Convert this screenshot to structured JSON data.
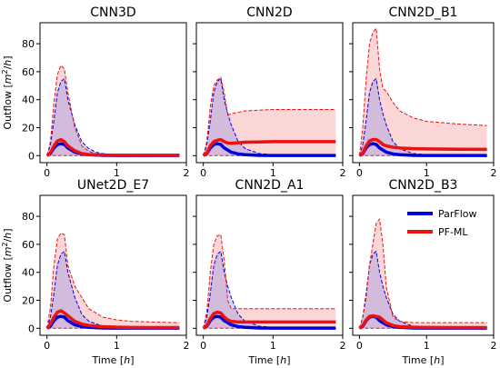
{
  "chart_data": [
    {
      "type": "line",
      "title": "CNN3D",
      "ylabel": "Outflow [m²/h]",
      "xlabel": "",
      "x": [
        0.0,
        0.05,
        0.1,
        0.15,
        0.2,
        0.25,
        0.3,
        0.4,
        0.5,
        0.6,
        0.7,
        0.8,
        1.0,
        1.5,
        1.9
      ],
      "series": [
        {
          "name": "ParFlow",
          "mean": [
            0,
            1.5,
            5.5,
            8,
            8.5,
            8,
            5.5,
            2.5,
            1.2,
            0.7,
            0.4,
            0.2,
            0.1,
            0.1,
            0.1
          ],
          "upper": [
            0,
            8,
            25,
            45,
            53,
            55,
            40,
            22,
            10,
            5,
            2.5,
            1.5,
            0.7,
            0.5,
            0.5
          ],
          "lower": [
            0,
            0,
            0,
            0,
            0,
            0,
            0,
            0,
            0,
            0,
            0,
            0,
            0,
            0,
            0
          ]
        },
        {
          "name": "PF-ML",
          "mean": [
            0,
            2,
            7,
            10.5,
            11.5,
            10,
            7,
            3.5,
            1.5,
            0.8,
            0.5,
            0.4,
            0.3,
            0.3,
            0.3
          ],
          "upper": [
            0,
            10,
            38,
            58,
            64.5,
            62,
            45,
            20,
            7,
            3,
            1.5,
            1.2,
            1,
            1,
            1
          ],
          "lower": [
            0,
            0,
            0,
            0,
            0,
            0,
            0,
            0,
            0,
            0,
            0,
            0,
            0,
            0,
            0
          ]
        }
      ]
    },
    {
      "type": "line",
      "title": "CNN2D",
      "xlabel": "",
      "ylabel": "",
      "x": [
        0.0,
        0.05,
        0.1,
        0.15,
        0.2,
        0.25,
        0.3,
        0.35,
        0.4,
        0.5,
        0.6,
        0.8,
        1.0,
        1.5,
        1.9
      ],
      "series": [
        {
          "name": "ParFlow",
          "mean": [
            0,
            1.5,
            5.5,
            8,
            8.5,
            8,
            5.5,
            4,
            2.5,
            1.2,
            0.7,
            0.2,
            0.1,
            0.1,
            0.1
          ],
          "upper": [
            0,
            8,
            25,
            45,
            53,
            55,
            40,
            30,
            22,
            10,
            5,
            1.5,
            0.7,
            0.5,
            0.5
          ],
          "lower": [
            0,
            0,
            0,
            0,
            0,
            0,
            0,
            0,
            0,
            0,
            0,
            0,
            0,
            0,
            0
          ]
        },
        {
          "name": "PF-ML",
          "mean": [
            0,
            2,
            7,
            10,
            11,
            11.5,
            10,
            9,
            8.8,
            9.2,
            9.6,
            9.8,
            10,
            10,
            10
          ],
          "upper": [
            0,
            10,
            35,
            50,
            54,
            56,
            45,
            29,
            30,
            31,
            32,
            32.5,
            33,
            33,
            33
          ],
          "lower": [
            0,
            0,
            0,
            0,
            0,
            0,
            0,
            0,
            0,
            0,
            0,
            0,
            0,
            0,
            0
          ]
        }
      ]
    },
    {
      "type": "line",
      "title": "CNN2D_B1",
      "xlabel": "",
      "ylabel": "",
      "x": [
        0.0,
        0.05,
        0.1,
        0.15,
        0.2,
        0.25,
        0.3,
        0.35,
        0.4,
        0.5,
        0.6,
        0.8,
        1.0,
        1.5,
        1.9
      ],
      "series": [
        {
          "name": "ParFlow",
          "mean": [
            0,
            1.5,
            5.5,
            8,
            8.5,
            8,
            5.5,
            4,
            2.5,
            1.2,
            0.7,
            0.2,
            0.1,
            0.1,
            0.1
          ],
          "upper": [
            0,
            8,
            25,
            45,
            53,
            55,
            40,
            30,
            22,
            10,
            5,
            1.5,
            0.7,
            0.5,
            0.5
          ],
          "lower": [
            0,
            0,
            0,
            0,
            0,
            0,
            0,
            0,
            0,
            0,
            0,
            0,
            0,
            0,
            0
          ]
        },
        {
          "name": "PF-ML",
          "mean": [
            0,
            2,
            7,
            10.5,
            11.5,
            11.5,
            10,
            8,
            7,
            6,
            5.5,
            5,
            4.8,
            4.6,
            4.5
          ],
          "upper": [
            0,
            20,
            55,
            80,
            88,
            91,
            62,
            48,
            46,
            38,
            32,
            27,
            24.5,
            22.5,
            21.5
          ],
          "lower": [
            0,
            0,
            0,
            0,
            0,
            0,
            0,
            0,
            0,
            0,
            0,
            0,
            0,
            0,
            0
          ]
        }
      ]
    },
    {
      "type": "line",
      "title": "UNet2D_E7",
      "xlabel": "Time [h]",
      "ylabel": "Outflow [m²/h]",
      "x": [
        0.0,
        0.05,
        0.1,
        0.15,
        0.2,
        0.25,
        0.3,
        0.4,
        0.5,
        0.6,
        0.8,
        1.0,
        1.2,
        1.5,
        1.9
      ],
      "series": [
        {
          "name": "ParFlow",
          "mean": [
            0,
            1.5,
            5.5,
            8,
            8.5,
            8,
            5.5,
            2.5,
            1.2,
            0.7,
            0.2,
            0.1,
            0.1,
            0.1,
            0.1
          ],
          "upper": [
            0,
            8,
            25,
            45,
            53,
            55,
            40,
            22,
            10,
            5,
            1.5,
            0.7,
            0.5,
            0.5,
            0.5
          ],
          "lower": [
            0,
            0,
            0,
            0,
            0,
            0,
            0,
            0,
            0,
            0,
            0,
            0,
            0,
            0,
            0
          ]
        },
        {
          "name": "PF-ML",
          "mean": [
            0,
            3,
            8,
            11.5,
            12.5,
            11,
            9,
            5,
            3,
            2,
            1.2,
            0.8,
            0.6,
            0.5,
            0.5
          ],
          "upper": [
            0,
            15,
            45,
            64,
            68,
            67,
            45,
            30,
            22,
            14,
            8,
            6,
            5,
            4.5,
            4
          ],
          "lower": [
            0,
            0,
            0,
            0,
            0,
            0,
            0,
            0,
            0,
            0,
            0,
            0,
            0,
            0,
            0
          ]
        }
      ]
    },
    {
      "type": "line",
      "title": "CNN2D_A1",
      "xlabel": "Time [h]",
      "ylabel": "",
      "x": [
        0.0,
        0.05,
        0.1,
        0.15,
        0.2,
        0.25,
        0.3,
        0.35,
        0.4,
        0.5,
        0.6,
        0.8,
        1.0,
        1.5,
        1.9
      ],
      "series": [
        {
          "name": "ParFlow",
          "mean": [
            0,
            1.5,
            5.5,
            8,
            8.5,
            8,
            5.5,
            4,
            2.5,
            1.2,
            0.7,
            0.2,
            0.1,
            0.1,
            0.1
          ],
          "upper": [
            0,
            8,
            25,
            45,
            53,
            55,
            40,
            30,
            22,
            10,
            5,
            1.5,
            0.7,
            0.5,
            0.5
          ],
          "lower": [
            0,
            0,
            0,
            0,
            0,
            0,
            0,
            0,
            0,
            0,
            0,
            0,
            0,
            0,
            0
          ]
        },
        {
          "name": "PF-ML",
          "mean": [
            0,
            2,
            7,
            10.5,
            11.5,
            11,
            8,
            6,
            5,
            4.5,
            4.5,
            4.5,
            4.5,
            4.5,
            4.5
          ],
          "upper": [
            0,
            12,
            40,
            60,
            66,
            67,
            48,
            20,
            14,
            14,
            14,
            14,
            14,
            14,
            14
          ],
          "lower": [
            0,
            0,
            0,
            0,
            0,
            0,
            0,
            0,
            0,
            0,
            0,
            0,
            0,
            0,
            0
          ]
        }
      ]
    },
    {
      "type": "line",
      "title": "CNN2D_B3",
      "xlabel": "Time [h]",
      "ylabel": "",
      "x": [
        0.0,
        0.05,
        0.1,
        0.15,
        0.2,
        0.25,
        0.3,
        0.35,
        0.4,
        0.5,
        0.6,
        0.8,
        1.0,
        1.5,
        1.9
      ],
      "series": [
        {
          "name": "ParFlow",
          "mean": [
            0,
            1.5,
            5.5,
            8,
            8.5,
            8,
            5.5,
            4,
            2.5,
            1.2,
            0.7,
            0.2,
            0.1,
            0.1,
            0.1
          ],
          "upper": [
            0,
            8,
            25,
            45,
            53,
            55,
            40,
            30,
            22,
            10,
            5,
            1.5,
            0.7,
            0.5,
            0.5
          ],
          "lower": [
            0,
            0,
            0,
            0,
            0,
            0,
            0,
            0,
            0,
            0,
            0,
            0,
            0,
            0,
            0
          ]
        },
        {
          "name": "PF-ML",
          "mean": [
            0,
            2,
            6,
            8.5,
            9,
            8.5,
            8,
            6,
            4,
            2,
            1.2,
            0.8,
            0.6,
            0.5,
            0.5
          ],
          "upper": [
            0,
            8,
            22,
            45,
            60,
            75,
            78,
            60,
            30,
            8,
            5,
            4,
            4,
            4,
            4
          ],
          "lower": [
            0,
            0,
            0,
            0,
            0,
            0,
            0,
            0,
            0,
            0,
            0,
            0,
            0,
            0,
            0
          ]
        }
      ]
    }
  ],
  "axes": {
    "xlim": [
      -0.1,
      2.0
    ],
    "ylim": [
      -5,
      95
    ],
    "xticks": [
      0,
      1,
      2
    ],
    "yticks": [
      0,
      20,
      40,
      60,
      80
    ],
    "grid": false
  },
  "legend": {
    "placement": "top-right of last panel",
    "entries": [
      {
        "label": "ParFlow",
        "color": "#0000dd"
      },
      {
        "label": "PF-ML",
        "color": "#ee1111"
      }
    ]
  },
  "colors": {
    "parflow": "#0000dd",
    "pfml": "#ee1111",
    "parflow_fill": "#8a8ae6",
    "pfml_fill": "#f7a3a3"
  }
}
